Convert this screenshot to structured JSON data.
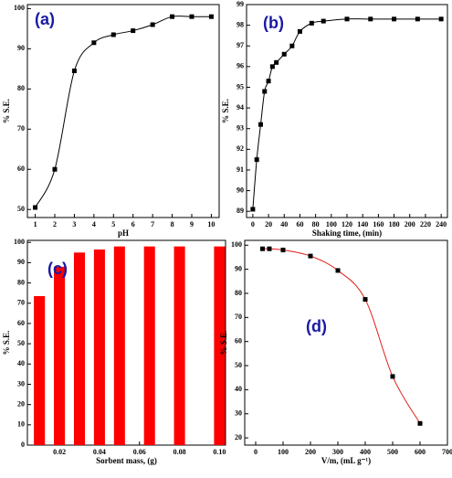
{
  "chart_data": [
    {
      "type": "line",
      "annotation": "(a)",
      "xlabel": "pH",
      "ylabel": "% S.E.",
      "x": [
        1,
        2,
        3,
        4,
        5,
        6,
        7,
        8,
        9,
        10
      ],
      "values": [
        50.5,
        60,
        84.5,
        91.5,
        93.5,
        94.5,
        96,
        98,
        98,
        98
      ],
      "color": "#000000",
      "marker_color": "#000000",
      "xlim": [
        0.6,
        10.4
      ],
      "xticks": [
        1,
        2,
        3,
        4,
        5,
        6,
        7,
        8,
        9,
        10
      ],
      "ylim": [
        48,
        101
      ],
      "yticks": [
        50,
        60,
        70,
        80,
        90,
        100
      ]
    },
    {
      "type": "line",
      "annotation": "(b)",
      "xlabel": "Shaking time, (min)",
      "ylabel": "% S.E.",
      "x": [
        0,
        5,
        10,
        15,
        20,
        25,
        30,
        40,
        50,
        60,
        75,
        90,
        120,
        150,
        180,
        210,
        240
      ],
      "values": [
        89.1,
        91.5,
        93.2,
        94.8,
        95.3,
        96,
        96.2,
        96.6,
        97,
        97.7,
        98.1,
        98.2,
        98.3,
        98.3,
        98.3,
        98.3,
        98.3
      ],
      "color": "#000000",
      "marker_color": "#000000",
      "xlim": [
        -8,
        248
      ],
      "xticks": [
        0,
        20,
        40,
        60,
        80,
        100,
        120,
        140,
        160,
        180,
        200,
        220,
        240
      ],
      "ylim": [
        88.7,
        99
      ],
      "yticks": [
        89,
        90,
        91,
        92,
        93,
        94,
        95,
        96,
        97,
        98,
        99
      ]
    },
    {
      "type": "bar",
      "annotation": "(c)",
      "xlabel": "Sorbent mass, (g)",
      "ylabel": "% S.E.",
      "x": [
        0.01,
        0.02,
        0.03,
        0.04,
        0.05,
        0.065,
        0.08,
        0.1
      ],
      "values": [
        73.5,
        88,
        95,
        96.5,
        98,
        98,
        98,
        98
      ],
      "color": "#ff0000",
      "xlim": [
        0.004,
        0.103
      ],
      "xticks": [
        0.02,
        0.04,
        0.06,
        0.08,
        {
          "value": 0.1,
          "label": "0.10"
        }
      ],
      "ylim": [
        0,
        101
      ],
      "yticks": [
        0,
        10,
        20,
        30,
        40,
        50,
        60,
        70,
        80,
        90,
        100
      ]
    },
    {
      "type": "line",
      "annotation": "(d)",
      "xlabel": "V/m, (mL g⁻¹)",
      "ylabel": "% S.E.",
      "x": [
        25,
        50,
        100,
        200,
        300,
        400,
        500,
        600
      ],
      "values": [
        98.5,
        98.5,
        98,
        95.5,
        89.5,
        77.5,
        45.5,
        26
      ],
      "color": "#e0201a",
      "marker_color": "#000000",
      "xlim": [
        -40,
        700
      ],
      "xticks": [
        0,
        100,
        200,
        300,
        400,
        500,
        600,
        700
      ],
      "ylim": [
        17,
        102
      ],
      "yticks": [
        20,
        30,
        40,
        50,
        60,
        70,
        80,
        90,
        100
      ]
    }
  ]
}
